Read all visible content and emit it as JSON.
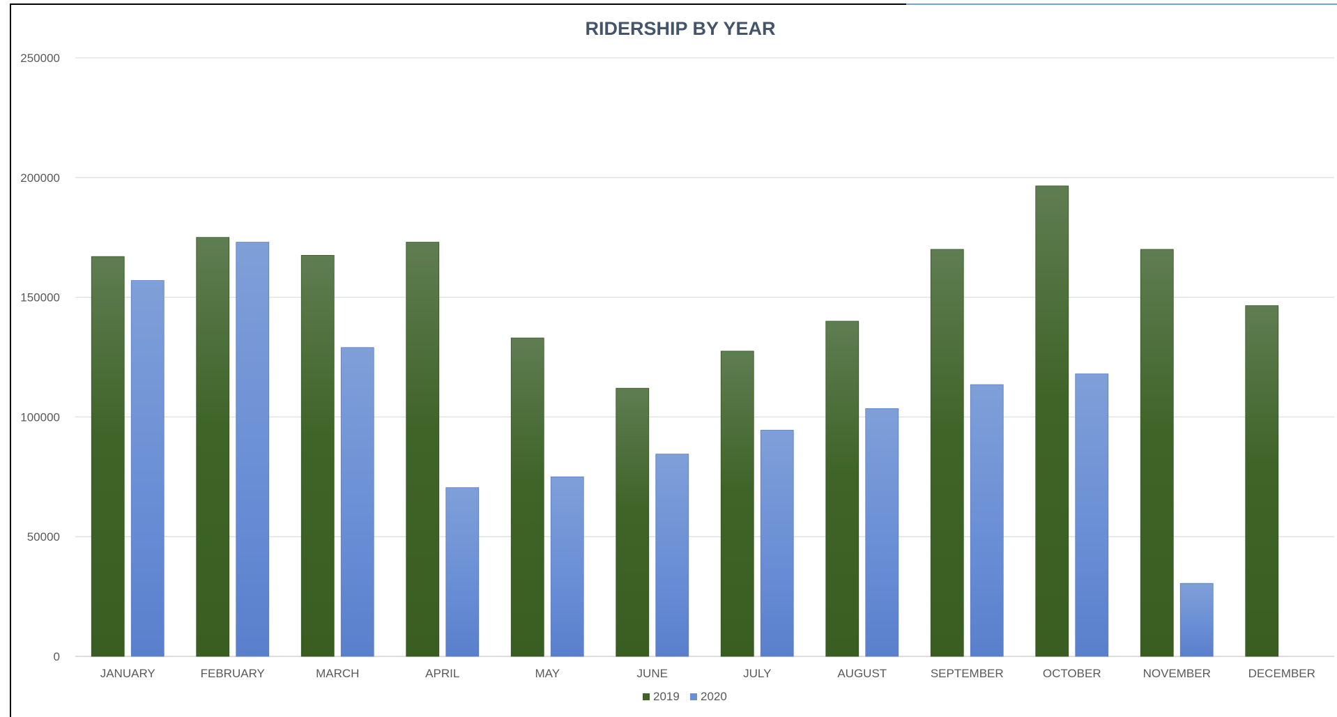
{
  "chart_data": {
    "type": "bar",
    "title": "RIDERSHIP BY YEAR",
    "xlabel": "",
    "ylabel": "",
    "categories": [
      "JANUARY",
      "FEBRUARY",
      "MARCH",
      "APRIL",
      "MAY",
      "JUNE",
      "JULY",
      "AUGUST",
      "SEPTEMBER",
      "OCTOBER",
      "NOVEMBER",
      "DECEMBER"
    ],
    "series": [
      {
        "name": "2019",
        "color": "#3f6428",
        "values": [
          167000,
          175000,
          167500,
          173000,
          133000,
          112000,
          127500,
          140000,
          170000,
          196500,
          170000,
          146500
        ]
      },
      {
        "name": "2020",
        "color": "#6b8fd6",
        "values": [
          157000,
          173000,
          129000,
          70500,
          75000,
          84500,
          94500,
          103500,
          113500,
          118000,
          30500,
          null
        ]
      }
    ],
    "ylim": [
      0,
      250000
    ],
    "yticks": [
      "0",
      "50000",
      "100000",
      "150000",
      "200000",
      "250000"
    ],
    "grid": true,
    "legend": "bottom-center"
  }
}
